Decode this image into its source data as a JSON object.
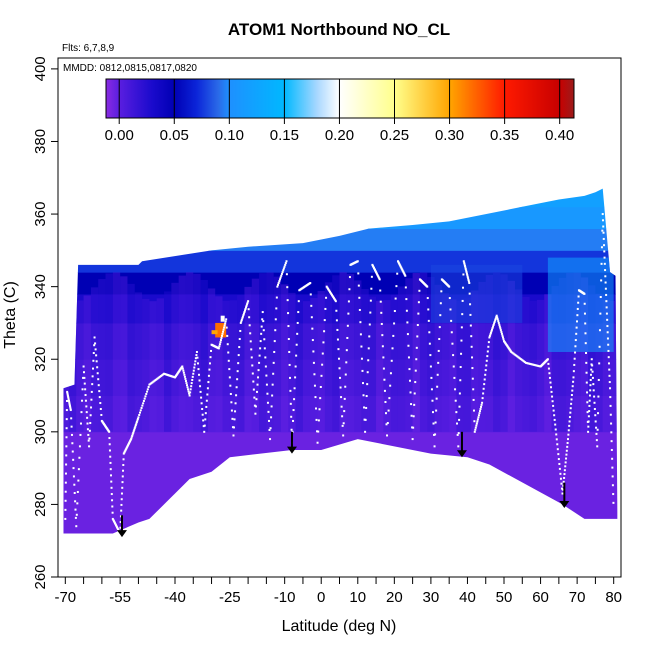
{
  "chart_data": {
    "type": "heatmap",
    "title": "ATOM1 Northbound NO_CL",
    "flights_note": "Flts: 6,7,8,9",
    "dates_note": "MMDD: 0812,0815,0817,0820",
    "xlabel": "Latitude (deg N)",
    "ylabel": "Theta (C)",
    "xlim": [
      -72,
      82
    ],
    "ylim": [
      260,
      403
    ],
    "x_ticks": [
      -70,
      -55,
      -40,
      -25,
      -10,
      0,
      10,
      20,
      30,
      40,
      50,
      60,
      70,
      80
    ],
    "x_tick_labels": [
      "-70",
      "-55",
      "-40",
      "-25",
      "-10",
      "0",
      "10",
      "20",
      "30",
      "40",
      "50",
      "60",
      "70",
      "80"
    ],
    "x_minor_ticks": [
      -65,
      -60,
      -50,
      -45,
      -35,
      -30,
      -20,
      -15,
      -5,
      5,
      15,
      25,
      35,
      45,
      55,
      65,
      75
    ],
    "y_ticks": [
      260,
      280,
      300,
      320,
      340,
      360,
      380,
      400
    ],
    "y_tick_labels": [
      "260",
      "280",
      "300",
      "320",
      "340",
      "360",
      "380",
      "400"
    ],
    "colorbar": {
      "range": [
        -0.012,
        0.413
      ],
      "ticks": [
        0.0,
        0.05,
        0.1,
        0.15,
        0.2,
        0.25,
        0.3,
        0.35,
        0.4
      ],
      "tick_labels": [
        "0.00",
        "0.05",
        "0.10",
        "0.15",
        "0.20",
        "0.25",
        "0.30",
        "0.35",
        "0.40"
      ],
      "stops": [
        {
          "v": -0.012,
          "color": "#8a2be2"
        },
        {
          "v": 0.0,
          "color": "#5a1ee0"
        },
        {
          "v": 0.03,
          "color": "#1a0acc"
        },
        {
          "v": 0.05,
          "color": "#0000b4"
        },
        {
          "v": 0.07,
          "color": "#0b24d8"
        },
        {
          "v": 0.09,
          "color": "#2a6ae8"
        },
        {
          "v": 0.1,
          "color": "#1e90ff"
        },
        {
          "v": 0.15,
          "color": "#00b8ff"
        },
        {
          "v": 0.18,
          "color": "#aad8ff"
        },
        {
          "v": 0.2,
          "color": "#ffffff"
        },
        {
          "v": 0.25,
          "color": "#ffff8c"
        },
        {
          "v": 0.3,
          "color": "#ffa500"
        },
        {
          "v": 0.35,
          "color": "#ff1a00"
        },
        {
          "v": 0.4,
          "color": "#c80000"
        },
        {
          "v": 0.413,
          "color": "#9b1c1c"
        }
      ]
    },
    "domain_bottom": [
      {
        "lat": -70.5,
        "theta": 272
      },
      {
        "lat": -57,
        "theta": 272
      },
      {
        "lat": -50,
        "theta": 275
      },
      {
        "lat": -47,
        "theta": 276
      },
      {
        "lat": -36,
        "theta": 287
      },
      {
        "lat": -30,
        "theta": 289
      },
      {
        "lat": -25,
        "theta": 293
      },
      {
        "lat": -8,
        "theta": 295
      },
      {
        "lat": 0,
        "theta": 295
      },
      {
        "lat": 10,
        "theta": 298
      },
      {
        "lat": 30,
        "theta": 294
      },
      {
        "lat": 40,
        "theta": 293
      },
      {
        "lat": 46,
        "theta": 291
      },
      {
        "lat": 66,
        "theta": 280
      },
      {
        "lat": 72,
        "theta": 276
      },
      {
        "lat": 81,
        "theta": 276
      }
    ],
    "domain_top": [
      {
        "lat": -70.5,
        "theta": 312
      },
      {
        "lat": -67.5,
        "theta": 313
      },
      {
        "lat": -66.5,
        "theta": 346
      },
      {
        "lat": -50,
        "theta": 346
      },
      {
        "lat": -49,
        "theta": 347
      },
      {
        "lat": -30,
        "theta": 350
      },
      {
        "lat": -20,
        "theta": 351
      },
      {
        "lat": -5,
        "theta": 352
      },
      {
        "lat": 5,
        "theta": 354
      },
      {
        "lat": 13,
        "theta": 356
      },
      {
        "lat": 25,
        "theta": 357
      },
      {
        "lat": 35,
        "theta": 358
      },
      {
        "lat": 45,
        "theta": 360
      },
      {
        "lat": 55,
        "theta": 362
      },
      {
        "lat": 65,
        "theta": 364
      },
      {
        "lat": 72,
        "theta": 365
      },
      {
        "lat": 75,
        "theta": 366
      },
      {
        "lat": 77,
        "theta": 367
      },
      {
        "lat": 79,
        "theta": 344
      },
      {
        "lat": 80.5,
        "theta": 343
      },
      {
        "lat": 81,
        "theta": 278
      }
    ],
    "field_layers": [
      {
        "theta_max": 300,
        "value": -0.004
      },
      {
        "theta_max": 310,
        "value": 0.0
      },
      {
        "theta_max": 320,
        "value": 0.008
      },
      {
        "theta_max": 330,
        "value": 0.015
      },
      {
        "theta_max": 338,
        "value": 0.03
      },
      {
        "theta_max": 344,
        "value": 0.05
      },
      {
        "theta_max": 350,
        "value": 0.075
      },
      {
        "theta_max": 356,
        "value": 0.095
      },
      {
        "theta_max": 362,
        "value": 0.11
      },
      {
        "theta_max": 368,
        "value": 0.12
      }
    ],
    "features": [
      {
        "name": "high-patch",
        "lat_min": -29,
        "lat_max": -26,
        "theta_min": 326,
        "theta_max": 330,
        "value": 0.32
      },
      {
        "name": "arctic-high-patch",
        "lat_min": 62,
        "lat_max": 80,
        "theta_min": 322,
        "theta_max": 348,
        "value": 0.12
      },
      {
        "name": "mid-lat-patch",
        "lat_min": 30,
        "lat_max": 55,
        "theta_min": 330,
        "theta_max": 346,
        "value": 0.08
      }
    ],
    "flight_track": [
      {
        "lat": -70,
        "theta": 276
      },
      {
        "lat": -69.5,
        "theta": 311
      },
      {
        "lat": -68.5,
        "theta": 306
      },
      {
        "lat": -67,
        "theta": 274
      },
      {
        "lat": -65,
        "theta": 318
      },
      {
        "lat": -63.5,
        "theta": 296
      },
      {
        "lat": -62,
        "theta": 326
      },
      {
        "lat": -60,
        "theta": 303
      },
      {
        "lat": -58,
        "theta": 300
      },
      {
        "lat": -57,
        "theta": 276
      },
      {
        "lat": -55,
        "theta": 272
      },
      {
        "lat": -54,
        "theta": 294
      },
      {
        "lat": -52,
        "theta": 298
      },
      {
        "lat": -50,
        "theta": 304
      },
      {
        "lat": -47,
        "theta": 313
      },
      {
        "lat": -43,
        "theta": 316
      },
      {
        "lat": -40,
        "theta": 315
      },
      {
        "lat": -38,
        "theta": 318
      },
      {
        "lat": -36,
        "theta": 310
      },
      {
        "lat": -34,
        "theta": 322
      },
      {
        "lat": -32,
        "theta": 300
      },
      {
        "lat": -30,
        "theta": 324
      },
      {
        "lat": -28,
        "theta": 323
      },
      {
        "lat": -26,
        "theta": 331
      },
      {
        "lat": -24,
        "theta": 299
      },
      {
        "lat": -22,
        "theta": 330
      },
      {
        "lat": -20,
        "theta": 336
      },
      {
        "lat": -18,
        "theta": 305
      },
      {
        "lat": -16,
        "theta": 333
      },
      {
        "lat": -14,
        "theta": 298
      },
      {
        "lat": -12,
        "theta": 340
      },
      {
        "lat": -9.5,
        "theta": 347
      },
      {
        "lat": -8,
        "theta": 297
      },
      {
        "lat": -6,
        "theta": 339
      },
      {
        "lat": -3,
        "theta": 341
      },
      {
        "lat": -1,
        "theta": 297
      },
      {
        "lat": 1.5,
        "theta": 340
      },
      {
        "lat": 4,
        "theta": 336
      },
      {
        "lat": 6,
        "theta": 299
      },
      {
        "lat": 8,
        "theta": 346
      },
      {
        "lat": 10,
        "theta": 347
      },
      {
        "lat": 12,
        "theta": 300
      },
      {
        "lat": 14,
        "theta": 346
      },
      {
        "lat": 16,
        "theta": 342
      },
      {
        "lat": 18,
        "theta": 299
      },
      {
        "lat": 21,
        "theta": 347
      },
      {
        "lat": 23,
        "theta": 343
      },
      {
        "lat": 25,
        "theta": 298
      },
      {
        "lat": 27,
        "theta": 342
      },
      {
        "lat": 29,
        "theta": 340
      },
      {
        "lat": 31,
        "theta": 296
      },
      {
        "lat": 33,
        "theta": 342
      },
      {
        "lat": 35,
        "theta": 340
      },
      {
        "lat": 37.5,
        "theta": 296
      },
      {
        "lat": 39,
        "theta": 347
      },
      {
        "lat": 40.5,
        "theta": 341
      },
      {
        "lat": 42,
        "theta": 300
      },
      {
        "lat": 44,
        "theta": 308
      },
      {
        "lat": 46,
        "theta": 326
      },
      {
        "lat": 48,
        "theta": 332
      },
      {
        "lat": 50,
        "theta": 325
      },
      {
        "lat": 52,
        "theta": 322
      },
      {
        "lat": 56,
        "theta": 319
      },
      {
        "lat": 60,
        "theta": 318
      },
      {
        "lat": 62,
        "theta": 320
      },
      {
        "lat": 64,
        "theta": 302
      },
      {
        "lat": 66,
        "theta": 283
      },
      {
        "lat": 67.5,
        "theta": 298
      },
      {
        "lat": 69,
        "theta": 315
      },
      {
        "lat": 70.5,
        "theta": 339
      },
      {
        "lat": 72,
        "theta": 338
      },
      {
        "lat": 73,
        "theta": 300
      },
      {
        "lat": 74,
        "theta": 320
      },
      {
        "lat": 75.5,
        "theta": 296
      },
      {
        "lat": 77,
        "theta": 360
      },
      {
        "lat": 78,
        "theta": 336
      },
      {
        "lat": 79,
        "theta": 312
      },
      {
        "lat": 80,
        "theta": 278
      }
    ],
    "markers": [
      {
        "type": "down-arrow",
        "lat": -54.5,
        "theta_top": 277,
        "theta_tip": 271
      },
      {
        "type": "down-arrow",
        "lat": -8,
        "theta_top": 300,
        "theta_tip": 294
      },
      {
        "type": "down-arrow",
        "lat": 38.5,
        "theta_top": 300,
        "theta_tip": 293
      },
      {
        "type": "down-arrow",
        "lat": 66.5,
        "theta_top": 286,
        "theta_tip": 279
      }
    ]
  }
}
